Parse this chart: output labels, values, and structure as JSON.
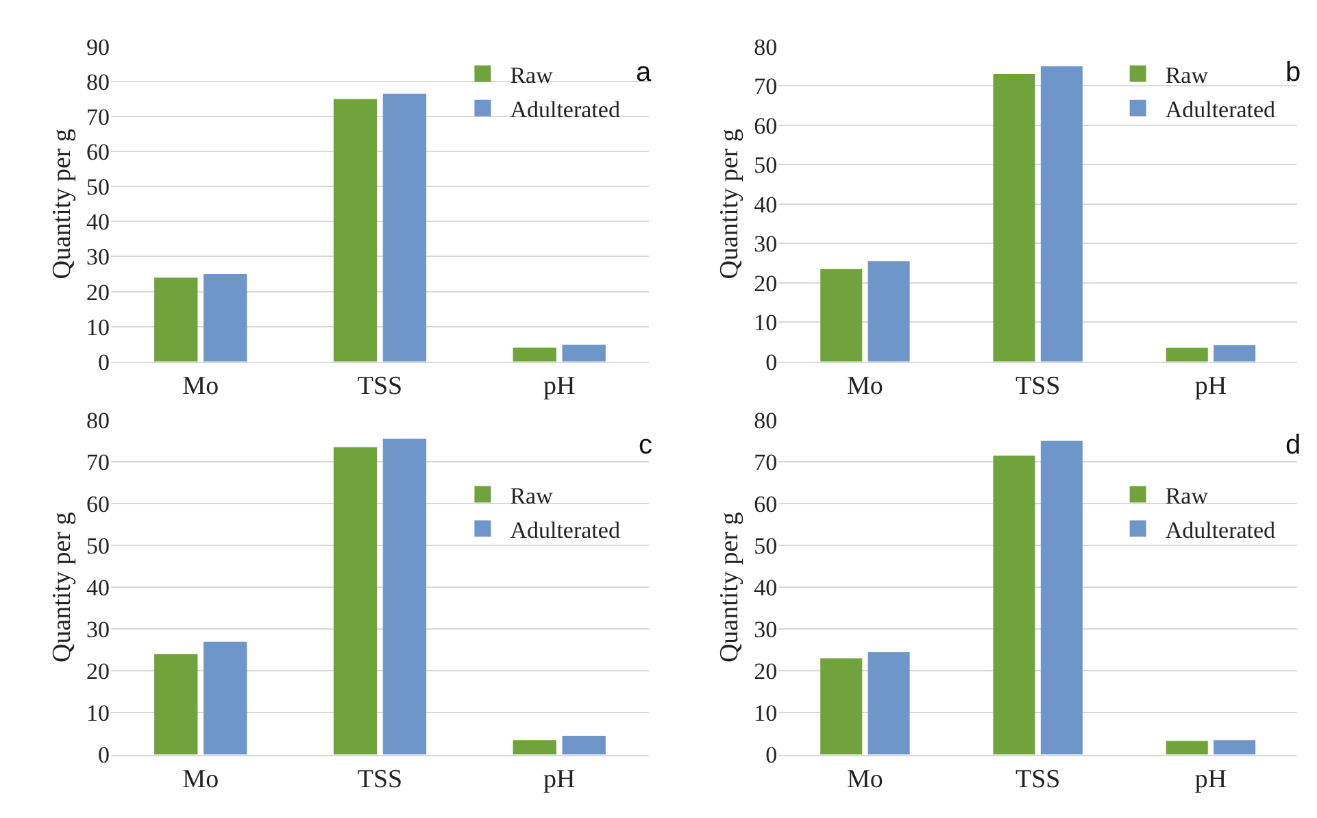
{
  "chart_data": [
    {
      "type": "bar",
      "title": "a",
      "ylabel": "Quantity per g",
      "categories": [
        "Mo",
        "TSS",
        "pH"
      ],
      "ylim": [
        0,
        90
      ],
      "yticks": [
        0,
        10,
        20,
        30,
        40,
        50,
        60,
        70,
        80,
        90
      ],
      "grid": "y",
      "legend": "top right",
      "series": [
        {
          "name": "Raw",
          "color": "#70a33c",
          "values": [
            24,
            75,
            4
          ]
        },
        {
          "name": "Adulterated",
          "color": "#6e96c8",
          "values": [
            25,
            76.5,
            4.8
          ]
        }
      ]
    },
    {
      "type": "bar",
      "title": "b",
      "ylabel": "Quantity per g",
      "categories": [
        "Mo",
        "TSS",
        "pH"
      ],
      "ylim": [
        0,
        80
      ],
      "yticks": [
        0,
        10,
        20,
        30,
        40,
        50,
        60,
        70,
        80
      ],
      "grid": "y",
      "legend": "top right",
      "series": [
        {
          "name": "Raw",
          "color": "#70a33c",
          "values": [
            23.5,
            73,
            3.5
          ]
        },
        {
          "name": "Adulterated",
          "color": "#6e96c8",
          "values": [
            25.5,
            75,
            4.2
          ]
        }
      ]
    },
    {
      "type": "bar",
      "title": "c",
      "ylabel": "Quantity per g",
      "categories": [
        "Mo",
        "TSS",
        "pH"
      ],
      "ylim": [
        0,
        80
      ],
      "yticks": [
        0,
        10,
        20,
        30,
        40,
        50,
        60,
        70,
        80
      ],
      "grid": "y",
      "legend": "right",
      "series": [
        {
          "name": "Raw",
          "color": "#70a33c",
          "values": [
            24,
            73.5,
            3.5
          ]
        },
        {
          "name": "Adulterated",
          "color": "#6e96c8",
          "values": [
            27,
            75.5,
            4.5
          ]
        }
      ]
    },
    {
      "type": "bar",
      "title": "d",
      "ylabel": "Quantity per g",
      "categories": [
        "Mo",
        "TSS",
        "pH"
      ],
      "ylim": [
        0,
        80
      ],
      "yticks": [
        0,
        10,
        20,
        30,
        40,
        50,
        60,
        70,
        80
      ],
      "grid": "y",
      "legend": "right",
      "series": [
        {
          "name": "Raw",
          "color": "#70a33c",
          "values": [
            23,
            71.5,
            3.3
          ]
        },
        {
          "name": "Adulterated",
          "color": "#6e96c8",
          "values": [
            24.5,
            75,
            3.5
          ]
        }
      ]
    }
  ]
}
